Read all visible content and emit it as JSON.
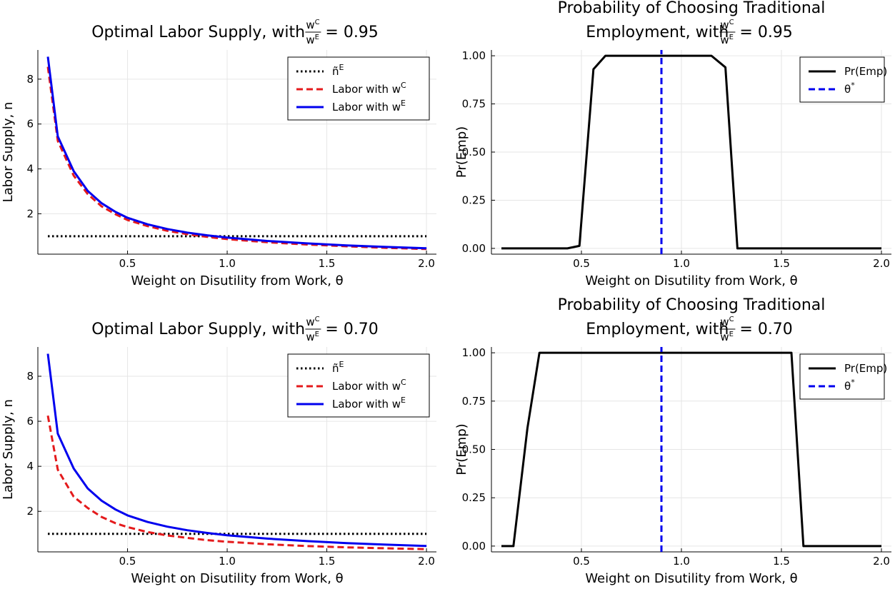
{
  "colors": {
    "red": "#e41a1c",
    "blue": "#0000ee",
    "black": "#000000",
    "grid": "#e6e6e6"
  },
  "chart_data": [
    {
      "type": "line",
      "title": "Optimal Labor Supply, with w^C/w^E = 0.95",
      "title_prefix": "Optimal Labor Supply, with",
      "title_frac_num": "w",
      "title_frac_num_sup": "C",
      "title_frac_den": "w",
      "title_frac_den_sup": "E",
      "title_suffix": "= 0.95",
      "xlabel": "Weight on Disutility from Work, θ",
      "ylabel": "Labor Supply, n",
      "xlim": [
        0.05,
        2.05
      ],
      "ylim": [
        0.2,
        9.3
      ],
      "xticks": [
        0.5,
        1.0,
        1.5,
        2.0
      ],
      "xtick_labels": [
        "0.5",
        "1.0",
        "1.5",
        "2.0"
      ],
      "yticks": [
        2,
        4,
        6,
        8
      ],
      "ytick_labels": [
        "2",
        "4",
        "6",
        "8"
      ],
      "grid": true,
      "legend_position": "top-right",
      "series": [
        {
          "name": "ñ^E",
          "legend_label": "ñ",
          "legend_sup": "E",
          "style": "dotted",
          "color": "#000000",
          "x": [
            0.1,
            2.0
          ],
          "y": [
            1.0,
            1.0
          ]
        },
        {
          "name": "Labor with w^C",
          "legend_label": "Labor with w",
          "legend_sup": "C",
          "style": "dashed",
          "color": "#e41a1c",
          "x": [
            0.1,
            0.15,
            0.23,
            0.3,
            0.37,
            0.44,
            0.5,
            0.6,
            0.7,
            0.8,
            0.9,
            1.0,
            1.2,
            1.4,
            1.6,
            1.8,
            2.0
          ],
          "y": [
            8.55,
            5.25,
            3.7,
            2.88,
            2.33,
            1.98,
            1.72,
            1.45,
            1.24,
            1.09,
            0.97,
            0.87,
            0.73,
            0.63,
            0.55,
            0.48,
            0.43
          ]
        },
        {
          "name": "Labor with w^E",
          "legend_label": "Labor with w",
          "legend_sup": "E",
          "style": "solid",
          "color": "#0000ee",
          "x": [
            0.1,
            0.15,
            0.23,
            0.3,
            0.37,
            0.44,
            0.5,
            0.6,
            0.7,
            0.8,
            0.9,
            1.0,
            1.2,
            1.4,
            1.6,
            1.8,
            2.0
          ],
          "y": [
            9.0,
            5.45,
            3.9,
            3.02,
            2.47,
            2.08,
            1.82,
            1.53,
            1.32,
            1.16,
            1.04,
            0.94,
            0.79,
            0.68,
            0.59,
            0.52,
            0.46
          ]
        }
      ]
    },
    {
      "type": "line",
      "title": "Probability of Choosing Traditional Employment, with w^C/w^E = 0.95",
      "title_line1": "Probability of Choosing Traditional",
      "title_prefix": "Employment, with",
      "title_frac_num": "w",
      "title_frac_num_sup": "C",
      "title_frac_den": "w",
      "title_frac_den_sup": "E",
      "title_suffix": "= 0.95",
      "xlabel": "Weight on Disutility from Work, θ",
      "ylabel": "Pr(Emp)",
      "xlim": [
        0.05,
        2.05
      ],
      "ylim": [
        -0.03,
        1.03
      ],
      "xticks": [
        0.5,
        1.0,
        1.5,
        2.0
      ],
      "xtick_labels": [
        "0.5",
        "1.0",
        "1.5",
        "2.0"
      ],
      "yticks": [
        0.0,
        0.25,
        0.5,
        0.75,
        1.0
      ],
      "ytick_labels": [
        "0.00",
        "0.25",
        "0.50",
        "0.75",
        "1.00"
      ],
      "grid": true,
      "legend_position": "top-right",
      "series": [
        {
          "name": "Pr(Emp)",
          "legend_label": "Pr(Emp)",
          "legend_sup": "",
          "style": "solid",
          "color": "#000000",
          "x": [
            0.1,
            0.43,
            0.49,
            0.56,
            0.62,
            1.15,
            1.22,
            1.28,
            2.0
          ],
          "y": [
            0.0,
            0.0,
            0.013,
            0.93,
            1.0,
            1.0,
            0.94,
            0.0,
            0.0
          ]
        },
        {
          "name": "θ*",
          "legend_label": "θ",
          "legend_sup": "*",
          "style": "dashed",
          "color": "#0000ee",
          "x": [
            0.9,
            0.9
          ],
          "y": [
            -0.03,
            1.03
          ]
        }
      ]
    },
    {
      "type": "line",
      "title": "Optimal Labor Supply, with w^C/w^E = 0.70",
      "title_prefix": "Optimal Labor Supply, with",
      "title_frac_num": "w",
      "title_frac_num_sup": "C",
      "title_frac_den": "w",
      "title_frac_den_sup": "E",
      "title_suffix": "= 0.70",
      "xlabel": "Weight on Disutility from Work, θ",
      "ylabel": "Labor Supply, n",
      "xlim": [
        0.05,
        2.05
      ],
      "ylim": [
        0.2,
        9.3
      ],
      "xticks": [
        0.5,
        1.0,
        1.5,
        2.0
      ],
      "xtick_labels": [
        "0.5",
        "1.0",
        "1.5",
        "2.0"
      ],
      "yticks": [
        2,
        4,
        6,
        8
      ],
      "ytick_labels": [
        "2",
        "4",
        "6",
        "8"
      ],
      "grid": true,
      "legend_position": "top-right",
      "series": [
        {
          "name": "ñ^E",
          "legend_label": "ñ",
          "legend_sup": "E",
          "style": "dotted",
          "color": "#000000",
          "x": [
            0.1,
            2.0
          ],
          "y": [
            1.0,
            1.0
          ]
        },
        {
          "name": "Labor with w^C",
          "legend_label": "Labor with w",
          "legend_sup": "C",
          "style": "dashed",
          "color": "#e41a1c",
          "x": [
            0.1,
            0.15,
            0.23,
            0.3,
            0.37,
            0.44,
            0.5,
            0.6,
            0.7,
            0.8,
            0.9,
            1.0,
            1.2,
            1.4,
            1.6,
            1.8,
            2.0
          ],
          "y": [
            6.25,
            3.85,
            2.65,
            2.15,
            1.75,
            1.47,
            1.3,
            1.08,
            0.93,
            0.82,
            0.72,
            0.65,
            0.54,
            0.46,
            0.4,
            0.36,
            0.32
          ]
        },
        {
          "name": "Labor with w^E",
          "legend_label": "Labor with w",
          "legend_sup": "E",
          "style": "solid",
          "color": "#0000ee",
          "x": [
            0.1,
            0.15,
            0.23,
            0.3,
            0.37,
            0.44,
            0.5,
            0.6,
            0.7,
            0.8,
            0.9,
            1.0,
            1.2,
            1.4,
            1.6,
            1.8,
            2.0
          ],
          "y": [
            9.0,
            5.45,
            3.9,
            3.02,
            2.47,
            2.08,
            1.82,
            1.53,
            1.32,
            1.16,
            1.04,
            0.94,
            0.79,
            0.68,
            0.59,
            0.52,
            0.46
          ]
        }
      ]
    },
    {
      "type": "line",
      "title": "Probability of Choosing Traditional Employment, with w^C/w^E = 0.70",
      "title_line1": "Probability of Choosing Traditional",
      "title_prefix": "Employment, with",
      "title_frac_num": "w",
      "title_frac_num_sup": "C",
      "title_frac_den": "w",
      "title_frac_den_sup": "E",
      "title_suffix": "= 0.70",
      "xlabel": "Weight on Disutility from Work, θ",
      "ylabel": "Pr(Emp)",
      "xlim": [
        0.05,
        2.05
      ],
      "ylim": [
        -0.03,
        1.03
      ],
      "xticks": [
        0.5,
        1.0,
        1.5,
        2.0
      ],
      "xtick_labels": [
        "0.5",
        "1.0",
        "1.5",
        "2.0"
      ],
      "yticks": [
        0.0,
        0.25,
        0.5,
        0.75,
        1.0
      ],
      "ytick_labels": [
        "0.00",
        "0.25",
        "0.50",
        "0.75",
        "1.00"
      ],
      "grid": true,
      "legend_position": "top-right",
      "series": [
        {
          "name": "Pr(Emp)",
          "legend_label": "Pr(Emp)",
          "legend_sup": "",
          "style": "solid",
          "color": "#000000",
          "x": [
            0.1,
            0.16,
            0.23,
            0.29,
            1.55,
            1.61,
            2.0
          ],
          "y": [
            0.0,
            0.0,
            0.61,
            1.0,
            1.0,
            0.0,
            0.0
          ]
        },
        {
          "name": "θ*",
          "legend_label": "θ",
          "legend_sup": "*",
          "style": "dashed",
          "color": "#0000ee",
          "x": [
            0.9,
            0.9
          ],
          "y": [
            -0.03,
            1.03
          ]
        }
      ]
    }
  ]
}
